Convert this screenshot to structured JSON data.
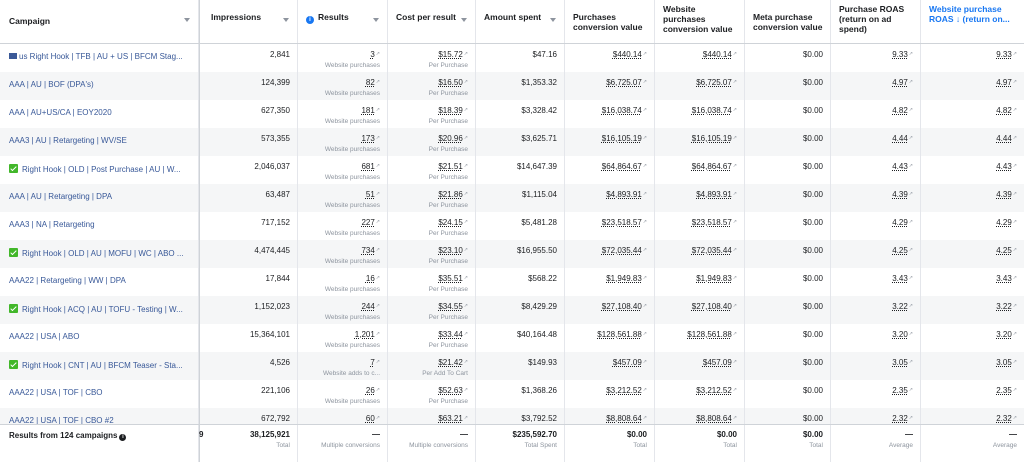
{
  "headers": {
    "campaign": "Campaign",
    "impressions": "Impressions",
    "results": "Results",
    "cost_per_result": "Cost per result",
    "amount_spent": "Amount spent",
    "purchases_conv": "Purchases conversion value",
    "website_purchases_conv": "Website purchases conversion value",
    "meta_purchase_conv": "Meta purchase conversion value",
    "purchase_roas": "Purchase ROAS (return on ad spend)",
    "website_purchase_roas": "Website purchase ROAS ↓ (return on..."
  },
  "rows": [
    {
      "icon": "flag",
      "campaign": "us Right Hook | TFB | AU + US | BFCM Stag...",
      "impressions": "2,841",
      "results": "3",
      "results_sub": "Website purchases",
      "cpr": "$15.72",
      "cpr_sub": "Per Purchase",
      "spent": "$47.16",
      "pcv": "$440.14",
      "wpcv": "$440.14",
      "meta": "$0.00",
      "proas": "9.33",
      "wproas": "9.33"
    },
    {
      "icon": "",
      "campaign": "AAA | AU | BOF (DPA's)",
      "impressions": "124,399",
      "results": "82",
      "results_sub": "Website purchases",
      "cpr": "$16.50",
      "cpr_sub": "Per Purchase",
      "spent": "$1,353.32",
      "pcv": "$6,725.07",
      "wpcv": "$6,725.07",
      "meta": "$0.00",
      "proas": "4.97",
      "wproas": "4.97"
    },
    {
      "icon": "",
      "campaign": "AAA | AU+US/CA | EOY2020",
      "impressions": "627,350",
      "results": "181",
      "results_sub": "Website purchases",
      "cpr": "$18.39",
      "cpr_sub": "Per Purchase",
      "spent": "$3,328.42",
      "pcv": "$16,038.74",
      "wpcv": "$16,038.74",
      "meta": "$0.00",
      "proas": "4.82",
      "wproas": "4.82"
    },
    {
      "icon": "",
      "campaign": "AAA3 | AU | Retargeting | WV/SE",
      "impressions": "573,355",
      "results": "173",
      "results_sub": "Website purchases",
      "cpr": "$20.96",
      "cpr_sub": "Per Purchase",
      "spent": "$3,625.71",
      "pcv": "$16,105.19",
      "wpcv": "$16,105.19",
      "meta": "$0.00",
      "proas": "4.44",
      "wproas": "4.44"
    },
    {
      "icon": "check",
      "campaign": "Right Hook | OLD | Post Purchase | AU | W...",
      "impressions": "2,046,037",
      "results": "681",
      "results_sub": "Website purchases",
      "cpr": "$21.51",
      "cpr_sub": "Per Purchase",
      "spent": "$14,647.39",
      "pcv": "$64,864.67",
      "wpcv": "$64,864.67",
      "meta": "$0.00",
      "proas": "4.43",
      "wproas": "4.43"
    },
    {
      "icon": "",
      "campaign": "AAA | AU | Retargeting | DPA",
      "impressions": "63,487",
      "results": "51",
      "results_sub": "Website purchases",
      "cpr": "$21.86",
      "cpr_sub": "Per Purchase",
      "spent": "$1,115.04",
      "pcv": "$4,893.91",
      "wpcv": "$4,893.91",
      "meta": "$0.00",
      "proas": "4.39",
      "wproas": "4.39"
    },
    {
      "icon": "",
      "campaign": "AAA3 | NA | Retargeting",
      "impressions": "717,152",
      "results": "227",
      "results_sub": "Website purchases",
      "cpr": "$24.15",
      "cpr_sub": "Per Purchase",
      "spent": "$5,481.28",
      "pcv": "$23,518.57",
      "wpcv": "$23,518.57",
      "meta": "$0.00",
      "proas": "4.29",
      "wproas": "4.29"
    },
    {
      "icon": "check",
      "campaign": "Right Hook | OLD | AU | MOFU | WC | ABO ...",
      "impressions": "4,474,445",
      "results": "734",
      "results_sub": "Website purchases",
      "cpr": "$23.10",
      "cpr_sub": "Per Purchase",
      "spent": "$16,955.50",
      "pcv": "$72,035.44",
      "wpcv": "$72,035.44",
      "meta": "$0.00",
      "proas": "4.25",
      "wproas": "4.25"
    },
    {
      "icon": "",
      "campaign": "AAA22 | Retargeting | WW | DPA",
      "impressions": "17,844",
      "results": "16",
      "results_sub": "Website purchases",
      "cpr": "$35.51",
      "cpr_sub": "Per Purchase",
      "spent": "$568.22",
      "pcv": "$1,949.83",
      "wpcv": "$1,949.83",
      "meta": "$0.00",
      "proas": "3.43",
      "wproas": "3.43"
    },
    {
      "icon": "check",
      "campaign": "Right Hook | ACQ | AU | TOFU - Testing | W...",
      "impressions": "1,152,023",
      "results": "244",
      "results_sub": "Website purchases",
      "cpr": "$34.55",
      "cpr_sub": "Per Purchase",
      "spent": "$8,429.29",
      "pcv": "$27,108.40",
      "wpcv": "$27,108.40",
      "meta": "$0.00",
      "proas": "3.22",
      "wproas": "3.22"
    },
    {
      "icon": "",
      "campaign": "AAA22 | USA | ABO",
      "impressions": "15,364,101",
      "results": "1,201",
      "results_sub": "Website purchases",
      "cpr": "$33.44",
      "cpr_sub": "Per Purchase",
      "spent": "$40,164.48",
      "pcv": "$128,561.88",
      "wpcv": "$128,561.88",
      "meta": "$0.00",
      "proas": "3.20",
      "wproas": "3.20"
    },
    {
      "icon": "check",
      "campaign": "Right Hook | CNT | AU | BFCM Teaser - Sta...",
      "impressions": "4,526",
      "results": "7",
      "results_sub": "Website adds to c...",
      "cpr": "$21.42",
      "cpr_sub": "Per Add To Cart",
      "spent": "$149.93",
      "pcv": "$457.09",
      "wpcv": "$457.09",
      "meta": "$0.00",
      "proas": "3.05",
      "wproas": "3.05"
    },
    {
      "icon": "",
      "campaign": "AAA22 | USA | TOF | CBO",
      "impressions": "221,106",
      "results": "26",
      "results_sub": "Website purchases",
      "cpr": "$52.63",
      "cpr_sub": "Per Purchase",
      "spent": "$1,368.26",
      "pcv": "$3,212.52",
      "wpcv": "$3,212.52",
      "meta": "$0.00",
      "proas": "2.35",
      "wproas": "2.35"
    },
    {
      "icon": "",
      "campaign": "AAA22 | USA | TOF | CBO #2",
      "impressions": "672,792",
      "results": "60",
      "results_sub": "",
      "cpr": "$63.21",
      "cpr_sub": "",
      "spent": "$3,792.52",
      "pcv": "$8,808.64",
      "wpcv": "$8,808.64",
      "meta": "$0.00",
      "proas": "2.32",
      "wproas": "2.32"
    }
  ],
  "footer": {
    "label": "Results from 124 campaigns",
    "extra": "9",
    "impressions": "38,125,921",
    "impressions_sub": "Total",
    "results": "—",
    "results_sub": "Multiple conversions",
    "cpr": "—",
    "cpr_sub": "Multiple conversions",
    "spent": "$235,592.70",
    "spent_sub": "Total Spent",
    "pcv": "$0.00",
    "pcv_sub": "Total",
    "wpcv": "$0.00",
    "wpcv_sub": "Total",
    "meta": "$0.00",
    "meta_sub": "Total",
    "proas": "—",
    "proas_sub": "Average",
    "wproas": "—",
    "wproas_sub": "Average"
  },
  "colors": {
    "link": "#385898",
    "active_header": "#1877f2",
    "check": "#42b72a"
  }
}
